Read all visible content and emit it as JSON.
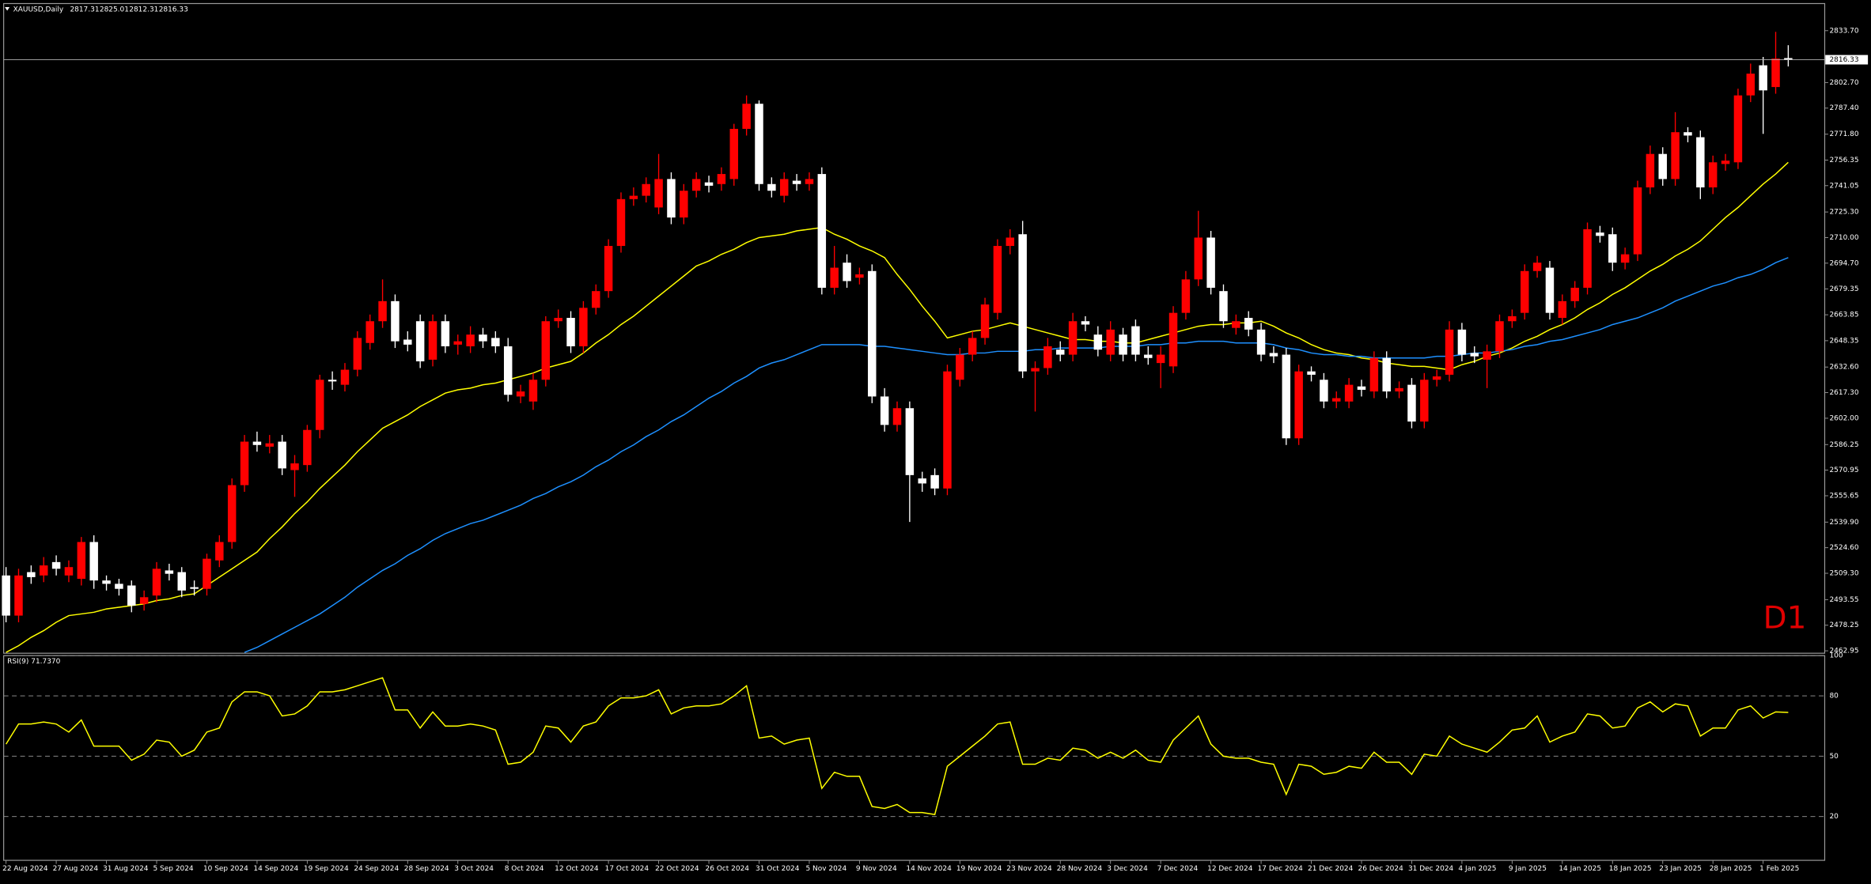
{
  "chart_data": [
    {
      "type": "candlestick",
      "title": "XAUUSD,Daily",
      "timeframe_label": "D1",
      "up_color": "#ff0000",
      "down_color": "#ffffff",
      "timeframe_color": "#e00000",
      "categories": [
        "22 Aug 2024",
        null,
        null,
        null,
        "27 Aug 2024",
        null,
        null,
        null,
        "31 Aug 2024",
        null,
        null,
        null,
        "5 Sep 2024",
        null,
        null,
        null,
        "10 Sep 2024",
        null,
        null,
        null,
        "14 Sep 2024",
        null,
        null,
        null,
        "19 Sep 2024",
        null,
        null,
        null,
        "24 Sep 2024",
        null,
        null,
        null,
        "28 Sep 2024",
        null,
        null,
        null,
        "3 Oct 2024",
        null,
        null,
        null,
        "8 Oct 2024",
        null,
        null,
        null,
        "12 Oct 2024",
        null,
        null,
        null,
        "17 Oct 2024",
        null,
        null,
        null,
        "22 Oct 2024",
        null,
        null,
        null,
        "26 Oct 2024",
        null,
        null,
        null,
        "31 Oct 2024",
        null,
        null,
        null,
        "5 Nov 2024",
        null,
        null,
        null,
        "9 Nov 2024",
        null,
        null,
        null,
        "14 Nov 2024",
        null,
        null,
        null,
        "19 Nov 2024",
        null,
        null,
        null,
        "23 Nov 2024",
        null,
        null,
        null,
        "28 Nov 2024",
        null,
        null,
        null,
        "3 Dec 2024",
        null,
        null,
        null,
        "7 Dec 2024",
        null,
        null,
        null,
        "12 Dec 2024",
        null,
        null,
        null,
        "17 Dec 2024",
        null,
        null,
        null,
        "21 Dec 2024",
        null,
        null,
        null,
        "26 Dec 2024",
        null,
        null,
        null,
        "31 Dec 2024",
        null,
        null,
        null,
        "4 Jan 2025",
        null,
        null,
        null,
        "9 Jan 2025",
        null,
        null,
        null,
        "14 Jan 2025",
        null,
        null,
        null,
        "18 Jan 2025",
        null,
        null,
        null,
        "23 Jan 2025",
        null,
        null,
        null,
        "28 Jan 2025",
        null,
        null,
        null,
        "1 Feb 2025",
        null,
        null
      ],
      "open": [
        2508,
        2484,
        2510,
        2508,
        2516,
        2508,
        2506,
        2528,
        2505,
        2503,
        2502,
        2491,
        2496,
        2511,
        2510,
        2501,
        2500,
        2517,
        2528,
        2562,
        2588,
        2585,
        2588,
        2571,
        2574,
        2595,
        2625,
        2622,
        2631,
        2647,
        2660,
        2672,
        2649,
        2660,
        2637,
        2660,
        2646,
        2645,
        2652,
        2650,
        2645,
        2615,
        2612,
        2625,
        2660,
        2662,
        2645,
        2668,
        2678,
        2705,
        2733,
        2735,
        2728,
        2745,
        2722,
        2738,
        2743,
        2742,
        2745,
        2775,
        2790,
        2742,
        2735,
        2744,
        2742,
        2748,
        2680,
        2695,
        2686,
        2690,
        2615,
        2598,
        2608,
        2566,
        2568,
        2560,
        2625,
        2640,
        2650,
        2665,
        2705,
        2712,
        2630,
        2632,
        2643,
        2640,
        2660,
        2652,
        2640,
        2652,
        2657,
        2640,
        2635,
        2633,
        2665,
        2685,
        2710,
        2678,
        2656,
        2662,
        2655,
        2641,
        2640,
        2590,
        2630,
        2625,
        2612,
        2612,
        2621,
        2618,
        2638,
        2618,
        2622,
        2600,
        2625,
        2628,
        2655,
        2641,
        2637,
        2642,
        2660,
        2665,
        2690,
        2692,
        2662,
        2672,
        2680,
        2713,
        2712,
        2695,
        2700,
        2740,
        2760,
        2745,
        2773,
        2770,
        2740,
        2754,
        2755,
        2795,
        2813,
        2800,
        2817.31
      ],
      "high": [
        2513,
        2512,
        2514,
        2519,
        2520,
        2517,
        2531,
        2532,
        2508,
        2506,
        2505,
        2499,
        2516,
        2515,
        2513,
        2505,
        2521,
        2532,
        2566,
        2592,
        2594,
        2592,
        2592,
        2580,
        2598,
        2628,
        2630,
        2635,
        2654,
        2664,
        2685,
        2676,
        2654,
        2664,
        2664,
        2664,
        2652,
        2657,
        2656,
        2654,
        2650,
        2622,
        2629,
        2663,
        2667,
        2666,
        2672,
        2682,
        2709,
        2737,
        2740,
        2746,
        2760,
        2749,
        2742,
        2749,
        2747,
        2752,
        2778,
        2795,
        2792,
        2746,
        2749,
        2748,
        2749,
        2752,
        2705,
        2700,
        2692,
        2694,
        2620,
        2612,
        2612,
        2570,
        2572,
        2634,
        2644,
        2654,
        2674,
        2709,
        2715,
        2720,
        2636,
        2650,
        2648,
        2665,
        2663,
        2657,
        2660,
        2656,
        2661,
        2645,
        2645,
        2669,
        2690,
        2726,
        2714,
        2682,
        2664,
        2666,
        2659,
        2645,
        2644,
        2634,
        2633,
        2629,
        2618,
        2626,
        2625,
        2642,
        2642,
        2624,
        2626,
        2629,
        2631,
        2660,
        2659,
        2645,
        2646,
        2664,
        2667,
        2694,
        2699,
        2696,
        2676,
        2684,
        2719,
        2717,
        2716,
        2704,
        2744,
        2765,
        2764,
        2785,
        2776,
        2774,
        2759,
        2760,
        2799,
        2814,
        2818,
        2833,
        2825.01
      ],
      "low": [
        2480,
        2480,
        2503,
        2504,
        2508,
        2504,
        2502,
        2500,
        2499,
        2496,
        2486,
        2487,
        2492,
        2505,
        2495,
        2496,
        2496,
        2513,
        2524,
        2558,
        2582,
        2581,
        2568,
        2555,
        2570,
        2590,
        2619,
        2618,
        2627,
        2643,
        2656,
        2644,
        2642,
        2632,
        2633,
        2641,
        2640,
        2641,
        2644,
        2641,
        2612,
        2611,
        2607,
        2621,
        2656,
        2641,
        2641,
        2664,
        2674,
        2701,
        2729,
        2731,
        2724,
        2718,
        2718,
        2734,
        2737,
        2738,
        2741,
        2771,
        2738,
        2734,
        2731,
        2738,
        2738,
        2676,
        2676,
        2680,
        2682,
        2611,
        2594,
        2594,
        2540,
        2558,
        2556,
        2556,
        2621,
        2636,
        2646,
        2661,
        2700,
        2626,
        2606,
        2628,
        2636,
        2636,
        2654,
        2639,
        2636,
        2636,
        2636,
        2634,
        2620,
        2629,
        2661,
        2681,
        2676,
        2656,
        2652,
        2651,
        2636,
        2635,
        2586,
        2586,
        2624,
        2608,
        2608,
        2608,
        2615,
        2614,
        2614,
        2614,
        2596,
        2596,
        2621,
        2624,
        2636,
        2635,
        2620,
        2638,
        2656,
        2661,
        2686,
        2661,
        2658,
        2668,
        2676,
        2707,
        2690,
        2691,
        2696,
        2736,
        2741,
        2741,
        2767,
        2733,
        2736,
        2750,
        2751,
        2791,
        2772,
        2796,
        2812.31
      ],
      "close": [
        2484,
        2508,
        2507,
        2514,
        2512,
        2513,
        2528,
        2505,
        2503,
        2500,
        2490,
        2495,
        2512,
        2509,
        2499,
        2500,
        2518,
        2528,
        2562,
        2588,
        2586,
        2587,
        2572,
        2575,
        2595,
        2625,
        2624,
        2631,
        2650,
        2660,
        2672,
        2648,
        2646,
        2636,
        2660,
        2645,
        2648,
        2652,
        2648,
        2645,
        2616,
        2618,
        2625,
        2660,
        2662,
        2645,
        2668,
        2678,
        2705,
        2733,
        2735,
        2742,
        2745,
        2722,
        2738,
        2745,
        2741,
        2748,
        2775,
        2790,
        2742,
        2738,
        2745,
        2742,
        2745,
        2680,
        2692,
        2684,
        2688,
        2615,
        2598,
        2608,
        2568,
        2563,
        2560,
        2630,
        2640,
        2650,
        2670,
        2705,
        2710,
        2630,
        2632,
        2645,
        2640,
        2660,
        2658,
        2643,
        2655,
        2640,
        2640,
        2638,
        2640,
        2665,
        2685,
        2710,
        2680,
        2660,
        2660,
        2655,
        2640,
        2639,
        2590,
        2630,
        2628,
        2612,
        2614,
        2622,
        2619,
        2638,
        2618,
        2620,
        2600,
        2625,
        2627,
        2655,
        2640,
        2639,
        2642,
        2660,
        2663,
        2690,
        2695,
        2665,
        2672,
        2680,
        2715,
        2711,
        2695,
        2700,
        2740,
        2760,
        2745,
        2773,
        2771,
        2740,
        2755,
        2756,
        2795,
        2808,
        2798,
        2817,
        2816.33
      ],
      "overlays": [
        {
          "color": "#ffff00",
          "values": [
            2462,
            2466,
            2471,
            2475,
            2480,
            2484,
            2485,
            2486,
            2488,
            2489,
            2490,
            2491,
            2493,
            2494,
            2496,
            2497,
            2502,
            2507,
            2512,
            2517,
            2522,
            2530,
            2537,
            2545,
            2552,
            2560,
            2567,
            2574,
            2582,
            2589,
            2596,
            2600,
            2604,
            2609,
            2613,
            2617,
            2619,
            2620,
            2622,
            2623,
            2625,
            2627,
            2629,
            2632,
            2634,
            2636,
            2641,
            2647,
            2652,
            2658,
            2663,
            2669,
            2675,
            2681,
            2687,
            2693,
            2696,
            2700,
            2703,
            2707,
            2710,
            2711,
            2712,
            2714,
            2715,
            2716,
            2712,
            2709,
            2705,
            2702,
            2698,
            2688,
            2679,
            2669,
            2660,
            2650,
            2652,
            2654,
            2655,
            2657,
            2659,
            2657,
            2655,
            2653,
            2651,
            2649,
            2649,
            2648,
            2648,
            2647,
            2647,
            2649,
            2651,
            2653,
            2655,
            2657,
            2658,
            2658,
            2659,
            2659,
            2660,
            2657,
            2653,
            2650,
            2646,
            2643,
            2641,
            2640,
            2638,
            2637,
            2635,
            2634,
            2633,
            2633,
            2632,
            2631,
            2634,
            2636,
            2639,
            2641,
            2644,
            2648,
            2651,
            2655,
            2658,
            2662,
            2667,
            2671,
            2676,
            2680,
            2685,
            2690,
            2694,
            2699,
            2703,
            2708,
            2715,
            2722,
            2728,
            2735,
            2742,
            2748,
            2755
          ]
        },
        {
          "color": "#1e90ff",
          "values": [
            null,
            null,
            null,
            null,
            null,
            null,
            null,
            null,
            null,
            null,
            null,
            null,
            null,
            null,
            null,
            null,
            null,
            null,
            null,
            2462,
            2465,
            2469,
            2473,
            2477,
            2481,
            2485,
            2490,
            2495,
            2501,
            2506,
            2511,
            2515,
            2520,
            2524,
            2529,
            2533,
            2536,
            2539,
            2541,
            2544,
            2547,
            2550,
            2554,
            2557,
            2561,
            2564,
            2568,
            2573,
            2577,
            2582,
            2586,
            2591,
            2595,
            2600,
            2604,
            2609,
            2614,
            2618,
            2623,
            2627,
            2632,
            2635,
            2637,
            2640,
            2643,
            2646,
            2646,
            2646,
            2646,
            2645,
            2645,
            2644,
            2643,
            2642,
            2641,
            2640,
            2640,
            2641,
            2641,
            2642,
            2642,
            2642,
            2643,
            2643,
            2644,
            2644,
            2644,
            2644,
            2645,
            2645,
            2645,
            2646,
            2646,
            2647,
            2647,
            2648,
            2648,
            2648,
            2647,
            2647,
            2647,
            2646,
            2644,
            2643,
            2641,
            2640,
            2640,
            2639,
            2639,
            2638,
            2638,
            2638,
            2638,
            2638,
            2639,
            2639,
            2640,
            2641,
            2641,
            2642,
            2643,
            2645,
            2646,
            2648,
            2649,
            2651,
            2653,
            2655,
            2658,
            2660,
            2662,
            2665,
            2668,
            2672,
            2675,
            2678,
            2681,
            2683,
            2686,
            2688,
            2691,
            2695,
            2698
          ]
        }
      ],
      "ylim": [
        2461.5,
        2848.5
      ],
      "yticks": [
        {
          "value": 2833.7,
          "label": "2833.70"
        },
        {
          "value": 2802.7,
          "label": "2802.70"
        },
        {
          "value": 2787.4,
          "label": "2787.40"
        },
        {
          "value": 2771.8,
          "label": "2771.80"
        },
        2756.35,
        2741.05,
        {
          "value": 2725.3,
          "label": "2725.30"
        },
        {
          "value": 2710,
          "label": "2710.00"
        },
        {
          "value": 2694.7,
          "label": "2694.70"
        },
        2679.35,
        2663.85,
        2648.35,
        {
          "value": 2632.6,
          "label": "2632.60"
        },
        {
          "value": 2617.3,
          "label": "2617.30"
        },
        {
          "value": 2602,
          "label": "2602.00"
        },
        2586.25,
        2570.95,
        2555.65,
        {
          "value": 2539.9,
          "label": "2539.90"
        },
        {
          "value": 2524.6,
          "label": "2524.60"
        },
        {
          "value": 2509.3,
          "label": "2509.30"
        },
        2493.55,
        2478.25,
        2462.95
      ]
    },
    {
      "type": "line",
      "title": "RSI(9) 71.7370",
      "color": "#ffff00",
      "values": [
        56,
        66,
        66,
        67,
        66,
        62,
        68,
        55,
        55,
        55,
        48,
        51,
        58,
        57,
        50,
        53,
        62,
        64,
        77,
        82,
        82,
        80,
        70,
        71,
        75,
        82,
        82,
        83,
        85,
        87,
        89,
        73,
        73,
        64,
        72,
        65,
        65,
        66,
        65,
        63,
        46,
        47,
        52,
        65,
        64,
        57,
        65,
        67,
        75,
        79,
        79,
        80,
        83,
        71,
        74,
        75,
        75,
        76,
        80,
        85,
        59,
        60,
        56,
        58,
        59,
        34,
        42,
        40,
        40,
        25,
        24,
        26,
        22,
        22,
        21,
        45,
        50,
        55,
        60,
        66,
        67,
        46,
        46,
        49,
        48,
        54,
        53,
        49,
        52,
        49,
        53,
        48,
        47,
        58,
        64,
        70,
        56,
        50,
        49,
        49,
        47,
        46,
        31,
        46,
        45,
        41,
        42,
        45,
        44,
        52,
        47,
        47,
        41,
        51,
        50,
        60,
        56,
        54,
        52,
        57,
        63,
        64,
        70,
        57,
        60,
        62,
        71,
        70,
        64,
        65,
        74,
        77,
        72,
        76,
        75,
        60,
        64,
        64,
        73,
        75,
        69,
        72,
        71.737
      ],
      "ylim": [
        0,
        100
      ],
      "yticks": [
        20,
        50,
        80,
        100
      ],
      "grid": true
    }
  ]
}
